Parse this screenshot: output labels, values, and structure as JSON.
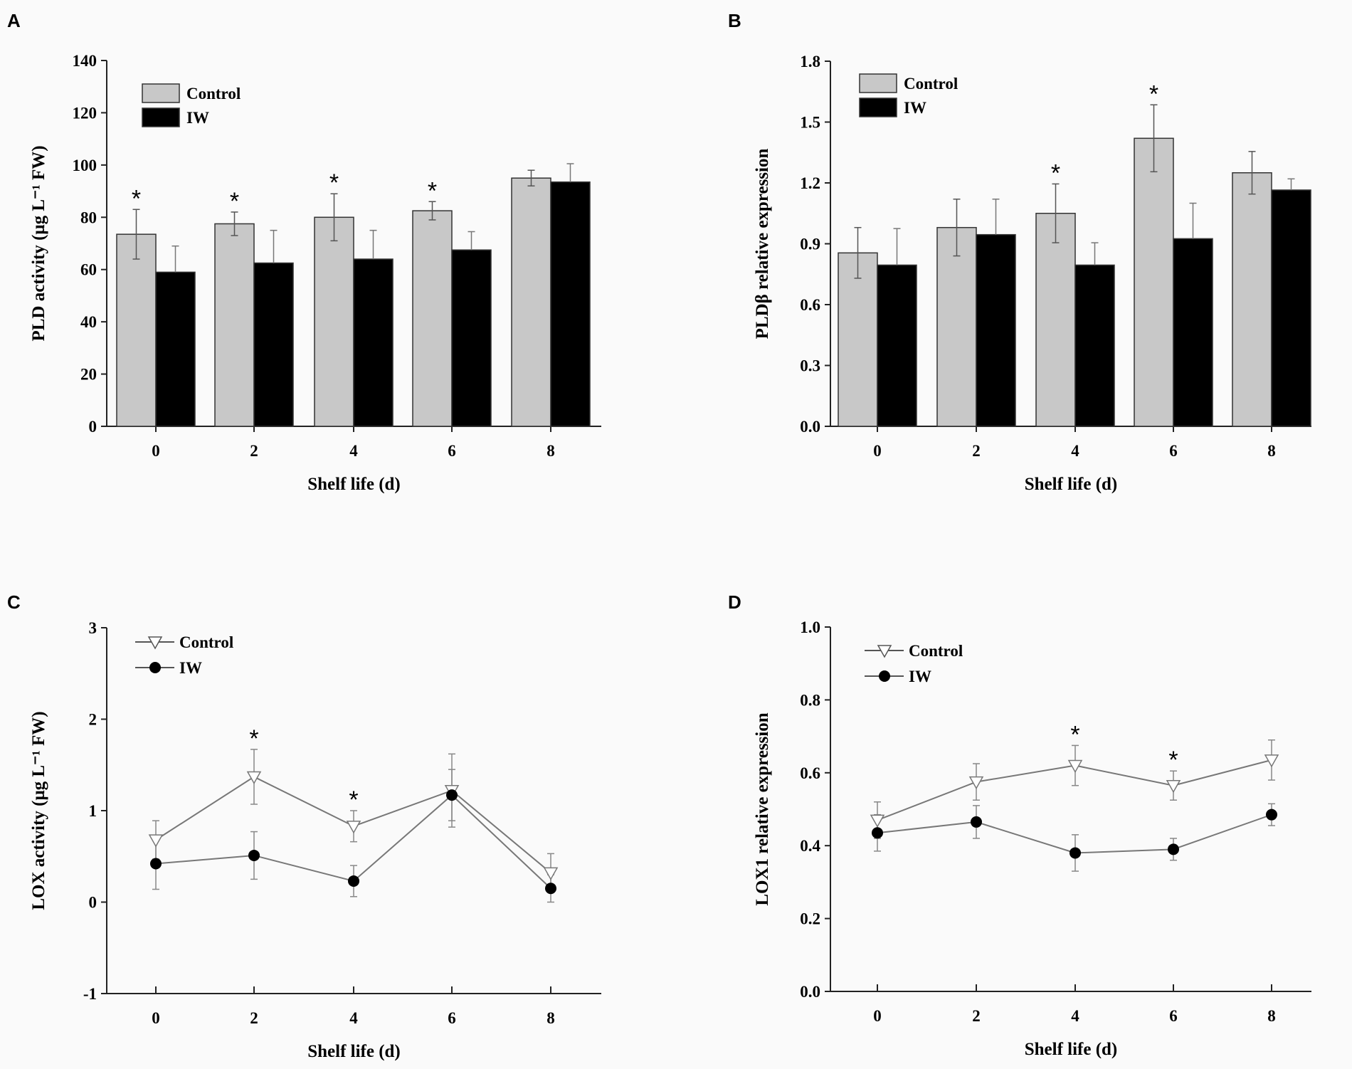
{
  "chart_data": [
    {
      "panel": "A",
      "type": "bar",
      "categories": [
        "0",
        "2",
        "4",
        "6",
        "8"
      ],
      "xlabel": "Shelf  life (d)",
      "ylabel": "PLD activity (μg L⁻¹ FW)",
      "ylim": [
        0,
        140
      ],
      "yticks": [
        "0",
        "20",
        "40",
        "60",
        "80",
        "100",
        "120",
        "140"
      ],
      "series": [
        {
          "name": "Control",
          "color": "#c8c8c8",
          "values": [
            73.5,
            77.5,
            80,
            82.5,
            95
          ],
          "errors": [
            9.5,
            4.5,
            9,
            3.5,
            3
          ]
        },
        {
          "name": "IW",
          "color": "#000000",
          "values": [
            59,
            62.5,
            64,
            67.5,
            93.5
          ],
          "errors": [
            10,
            12.5,
            11,
            7,
            7
          ]
        }
      ],
      "significance": [
        "*",
        "*",
        "*",
        "*",
        ""
      ]
    },
    {
      "panel": "B",
      "type": "bar",
      "categories": [
        "0",
        "2",
        "4",
        "6",
        "8"
      ],
      "xlabel": "Shelf  life (d)",
      "ylabel": "PLDβ relative expression",
      "ylim": [
        0,
        1.8
      ],
      "yticks": [
        "0.0",
        "0.3",
        "0.6",
        "0.9",
        "1.2",
        "1.5",
        "1.8"
      ],
      "series": [
        {
          "name": "Control",
          "color": "#c8c8c8",
          "values": [
            0.855,
            0.98,
            1.05,
            1.42,
            1.25
          ],
          "errors": [
            0.125,
            0.14,
            0.145,
            0.165,
            0.105
          ]
        },
        {
          "name": "IW",
          "color": "#000000",
          "values": [
            0.795,
            0.945,
            0.795,
            0.925,
            1.165
          ],
          "errors": [
            0.18,
            0.175,
            0.11,
            0.175,
            0.055
          ]
        }
      ],
      "significance": [
        "",
        "",
        "*",
        "*",
        ""
      ]
    },
    {
      "panel": "C",
      "type": "line",
      "categories": [
        "0",
        "2",
        "4",
        "6",
        "8"
      ],
      "xlabel": "Shelf  life (d)",
      "ylabel": "LOX activity (μg L⁻¹ FW)",
      "ylim": [
        -1,
        3
      ],
      "yticks": [
        "-1",
        "0",
        "1",
        "2",
        "3"
      ],
      "series": [
        {
          "name": "Control",
          "marker": "open-triangle-down",
          "values": [
            0.68,
            1.37,
            0.83,
            1.22,
            0.32
          ],
          "errors": [
            0.21,
            0.3,
            0.17,
            0.4,
            0.21
          ]
        },
        {
          "name": "IW",
          "marker": "filled-circle",
          "values": [
            0.42,
            0.51,
            0.23,
            1.17,
            0.15
          ],
          "errors": [
            0.28,
            0.26,
            0.17,
            0.28,
            0.15
          ]
        }
      ],
      "significance": [
        "",
        "*",
        "*",
        "",
        ""
      ]
    },
    {
      "panel": "D",
      "type": "line",
      "categories": [
        "0",
        "2",
        "4",
        "6",
        "8"
      ],
      "xlabel": "Shelf  life (d)",
      "ylabel": "LOX1 relative expression",
      "ylim": [
        0,
        1.0
      ],
      "yticks": [
        "0.0",
        "0.2",
        "0.4",
        "0.6",
        "0.8",
        "1.0"
      ],
      "series": [
        {
          "name": "Control",
          "marker": "open-triangle-down",
          "values": [
            0.47,
            0.575,
            0.62,
            0.565,
            0.635
          ],
          "errors": [
            0.05,
            0.05,
            0.055,
            0.04,
            0.055
          ]
        },
        {
          "name": "IW",
          "marker": "filled-circle",
          "values": [
            0.435,
            0.465,
            0.38,
            0.39,
            0.485
          ],
          "errors": [
            0.05,
            0.045,
            0.05,
            0.03,
            0.03
          ]
        }
      ],
      "significance": [
        "",
        "",
        "*",
        "*",
        ""
      ]
    }
  ]
}
